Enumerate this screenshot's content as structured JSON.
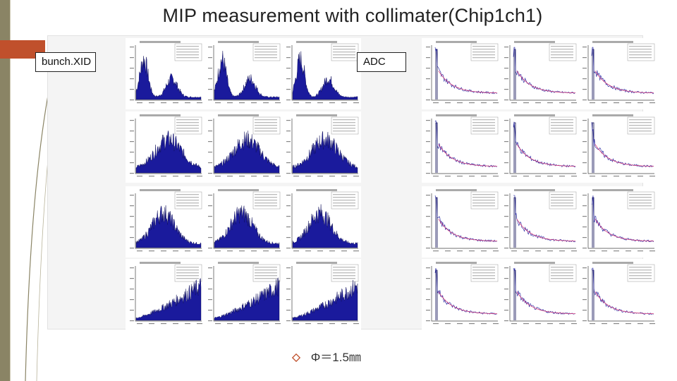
{
  "slide": {
    "title": "MIP measurement with collimater(Chip1ch1)",
    "label_left": "bunch.XID",
    "label_right": "ADC",
    "footnote": "Φ＝1.5㎜"
  },
  "colors": {
    "stripe": "#8a8465",
    "accent": "#c0502c",
    "hist_fill": "#1a1a9c",
    "hist_edge": "#06064f",
    "fit_line": "#d23a7a"
  },
  "chart_data": [
    {
      "type": "area",
      "panel": "bunchXID",
      "row": 1,
      "col": 1,
      "shape": "double-peak"
    },
    {
      "type": "area",
      "panel": "bunchXID",
      "row": 1,
      "col": 2,
      "shape": "double-peak"
    },
    {
      "type": "area",
      "panel": "bunchXID",
      "row": 1,
      "col": 3,
      "shape": "double-peak"
    },
    {
      "type": "area",
      "panel": "bunchXID",
      "row": 2,
      "col": 1,
      "shape": "bell"
    },
    {
      "type": "area",
      "panel": "bunchXID",
      "row": 2,
      "col": 2,
      "shape": "bell"
    },
    {
      "type": "area",
      "panel": "bunchXID",
      "row": 2,
      "col": 3,
      "shape": "bell"
    },
    {
      "type": "area",
      "panel": "bunchXID",
      "row": 3,
      "col": 1,
      "shape": "hump"
    },
    {
      "type": "area",
      "panel": "bunchXID",
      "row": 3,
      "col": 2,
      "shape": "hump"
    },
    {
      "type": "area",
      "panel": "bunchXID",
      "row": 3,
      "col": 3,
      "shape": "hump"
    },
    {
      "type": "area",
      "panel": "bunchXID",
      "row": 4,
      "col": 1,
      "shape": "rise"
    },
    {
      "type": "area",
      "panel": "bunchXID",
      "row": 4,
      "col": 2,
      "shape": "rise"
    },
    {
      "type": "area",
      "panel": "bunchXID",
      "row": 4,
      "col": 3,
      "shape": "rise"
    },
    {
      "type": "line",
      "panel": "ADC",
      "row": 1,
      "col": 1,
      "shape": "decay"
    },
    {
      "type": "line",
      "panel": "ADC",
      "row": 1,
      "col": 2,
      "shape": "decay"
    },
    {
      "type": "line",
      "panel": "ADC",
      "row": 1,
      "col": 3,
      "shape": "decay"
    },
    {
      "type": "line",
      "panel": "ADC",
      "row": 2,
      "col": 1,
      "shape": "decay"
    },
    {
      "type": "line",
      "panel": "ADC",
      "row": 2,
      "col": 2,
      "shape": "decay"
    },
    {
      "type": "line",
      "panel": "ADC",
      "row": 2,
      "col": 3,
      "shape": "decay"
    },
    {
      "type": "line",
      "panel": "ADC",
      "row": 3,
      "col": 1,
      "shape": "decay"
    },
    {
      "type": "line",
      "panel": "ADC",
      "row": 3,
      "col": 2,
      "shape": "decay"
    },
    {
      "type": "line",
      "panel": "ADC",
      "row": 3,
      "col": 3,
      "shape": "decay"
    },
    {
      "type": "line",
      "panel": "ADC",
      "row": 4,
      "col": 1,
      "shape": "decay"
    },
    {
      "type": "line",
      "panel": "ADC",
      "row": 4,
      "col": 2,
      "shape": "decay"
    },
    {
      "type": "line",
      "panel": "ADC",
      "row": 4,
      "col": 3,
      "shape": "decay"
    }
  ]
}
